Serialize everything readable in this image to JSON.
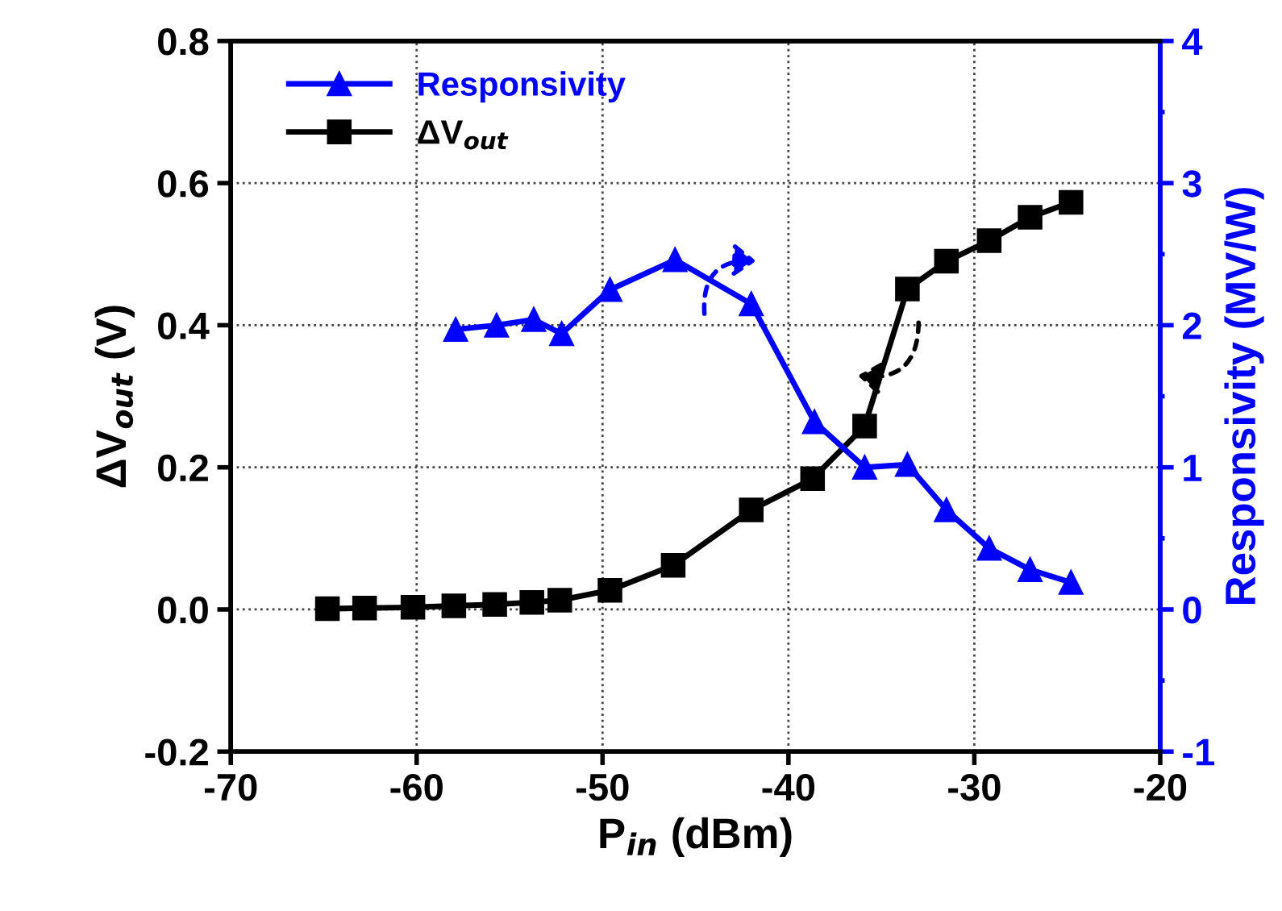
{
  "chart_data": {
    "type": "line",
    "xlabel": "P$_{in}$ (dBm)",
    "ylabel": "ΔV$_{out}$ (V)",
    "y2label": "Responsivity (MV/W)",
    "series": [
      {
        "name": "Responsivity",
        "color": "#0000ff",
        "axis": "y2",
        "marker": "triangle",
        "x": [
          -57.9,
          -55.7,
          -53.7,
          -52.2,
          -49.6,
          -46.1,
          -42.0,
          -38.6,
          -35.9,
          -33.6,
          -31.5,
          -29.2,
          -27.0,
          -24.8
        ],
        "values": [
          1.97,
          2.0,
          2.04,
          1.94,
          2.25,
          2.46,
          2.15,
          1.32,
          1.0,
          1.02,
          0.7,
          0.43,
          0.28,
          0.19
        ]
      },
      {
        "name": "ΔV$_{out}$",
        "color": "#000000",
        "marker": "square",
        "x": [
          -64.8,
          -62.8,
          -60.2,
          -58.0,
          -55.8,
          -53.8,
          -52.3,
          -49.6,
          -46.2,
          -42.0,
          -38.7,
          -35.9,
          -33.6,
          -31.5,
          -29.2,
          -27.0,
          -24.8
        ],
        "values": [
          0.001,
          0.002,
          0.003,
          0.005,
          0.007,
          0.01,
          0.013,
          0.027,
          0.062,
          0.14,
          0.184,
          0.258,
          0.451,
          0.49,
          0.519,
          0.552,
          0.573
        ]
      }
    ],
    "xlim": [
      -70,
      -20
    ],
    "xticks": [
      -70,
      -60,
      -50,
      -40,
      -30,
      -20
    ],
    "ylim": [
      -0.2,
      0.8
    ],
    "yticks": [
      -0.2,
      {
        "value": 0,
        "label": "0.0"
      },
      0.2,
      0.4,
      0.6,
      0.8
    ],
    "y2lim": [
      -1,
      4
    ],
    "y2ticks": [
      -1,
      0,
      1,
      2,
      3,
      4
    ],
    "grid": true,
    "legend": "top left",
    "line_style": "solid"
  }
}
